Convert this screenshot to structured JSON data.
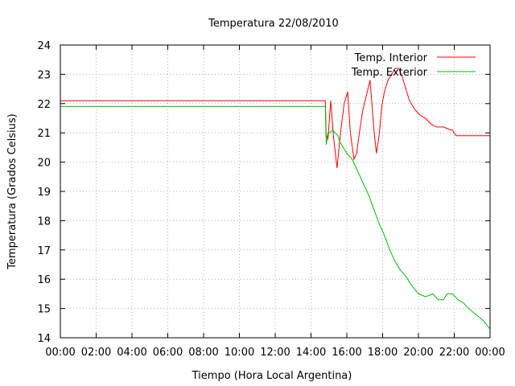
{
  "chart_data": {
    "type": "line",
    "title": "Temperatura 22/08/2010",
    "xlabel": "Tiempo (Hora Local Argentina)",
    "ylabel": "Temperatura (Grados Celsius)",
    "x_unit": "hours",
    "xlim": [
      0,
      24
    ],
    "ylim": [
      14,
      24
    ],
    "x_ticks": [
      0,
      2,
      4,
      6,
      8,
      10,
      12,
      14,
      16,
      18,
      20,
      22,
      24
    ],
    "x_tick_labels": [
      "00:00",
      "02:00",
      "04:00",
      "06:00",
      "08:00",
      "10:00",
      "12:00",
      "14:00",
      "16:00",
      "18:00",
      "20:00",
      "22:00",
      "00:00"
    ],
    "y_ticks": [
      14,
      15,
      16,
      17,
      18,
      19,
      20,
      21,
      22,
      23,
      24
    ],
    "y_tick_labels": [
      "14",
      "15",
      "16",
      "17",
      "18",
      "19",
      "20",
      "21",
      "22",
      "23",
      "24"
    ],
    "grid": true,
    "legend_position": "top-right",
    "series": [
      {
        "name": "Temp. Interior",
        "color": "#ff0000",
        "x": [
          0,
          14.8,
          14.85,
          14.95,
          15.1,
          15.25,
          15.45,
          15.65,
          15.85,
          16.05,
          16.2,
          16.4,
          16.55,
          16.7,
          16.9,
          17.1,
          17.3,
          17.5,
          17.65,
          17.8,
          17.95,
          18.1,
          18.3,
          18.5,
          18.7,
          18.9,
          19.1,
          19.3,
          19.5,
          19.8,
          20.1,
          20.4,
          20.7,
          21.0,
          21.4,
          21.8,
          21.9,
          22.1,
          22.5,
          23.0,
          23.5,
          24.0
        ],
        "y": [
          22.1,
          22.1,
          20.9,
          20.8,
          22.1,
          20.9,
          19.8,
          21.0,
          22.0,
          22.4,
          21.0,
          20.1,
          20.3,
          21.0,
          21.8,
          22.3,
          22.8,
          21.2,
          20.3,
          20.9,
          21.9,
          22.4,
          22.8,
          23.0,
          23.2,
          23.2,
          22.9,
          22.5,
          22.1,
          21.8,
          21.6,
          21.5,
          21.3,
          21.2,
          21.2,
          21.1,
          21.1,
          20.9,
          20.9,
          20.9,
          20.9,
          20.9
        ]
      },
      {
        "name": "Temp. Exterior",
        "color": "#00bb00",
        "x": [
          0,
          14.8,
          14.85,
          14.95,
          15.05,
          15.2,
          15.35,
          15.5,
          15.6,
          15.8,
          16.0,
          16.3,
          16.6,
          16.9,
          17.2,
          17.5,
          17.8,
          18.1,
          18.4,
          18.7,
          19.0,
          19.3,
          19.6,
          20.0,
          20.4,
          20.8,
          21.1,
          21.4,
          21.6,
          21.9,
          22.2,
          22.5,
          22.8,
          23.2,
          23.6,
          24.0
        ],
        "y": [
          21.9,
          21.9,
          20.6,
          21.0,
          21.0,
          21.1,
          21.0,
          20.9,
          20.7,
          20.5,
          20.3,
          20.1,
          19.7,
          19.3,
          18.9,
          18.4,
          17.9,
          17.5,
          17.0,
          16.6,
          16.3,
          16.1,
          15.8,
          15.5,
          15.4,
          15.5,
          15.3,
          15.3,
          15.5,
          15.5,
          15.3,
          15.2,
          15.0,
          14.8,
          14.6,
          14.3
        ]
      }
    ]
  }
}
